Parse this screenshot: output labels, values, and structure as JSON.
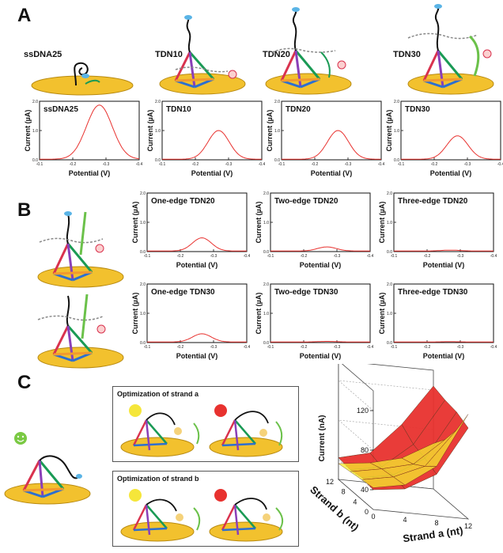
{
  "panels": {
    "a": "A",
    "b": "B",
    "c": "C"
  },
  "a_headers": [
    "ssDNA25",
    "TDN10",
    "TDN20",
    "TDN30"
  ],
  "c_boxes": {
    "a_title": "Optimization of strand a",
    "b_title": "Optimization of strand b"
  },
  "colors": {
    "curve": "#e8322f",
    "gold": "#f2c12e",
    "edge_red": "#d9324e",
    "edge_green": "#1a9a55",
    "edge_blue": "#2d6fd0",
    "surface_red": "#e8322f",
    "surface_yellow": "#f5ee2e",
    "surface_orange": "#f4a52a"
  },
  "icons": [
    "gold-electrode-icon",
    "dna-tetrahedron-icon",
    "methylene-blue-tag-icon",
    "smiley-face-icon"
  ],
  "chart_data": [
    {
      "type": "line",
      "id": "a1",
      "title": "ssDNA25",
      "xlabel": "Potential (V)",
      "ylabel": "Current (µA)",
      "xlim": [
        -0.1,
        -0.4
      ],
      "ylim": [
        0,
        2.0
      ],
      "xticks": [
        "-0.1",
        "-0.2",
        "-0.3",
        "-0.4"
      ],
      "yticks": [
        "0.0",
        "1.0",
        "2.0"
      ],
      "peak": {
        "x": -0.28,
        "y": 1.85,
        "width": 0.055
      }
    },
    {
      "type": "line",
      "id": "a2",
      "title": "TDN10",
      "xlabel": "Potential (V)",
      "ylabel": "Current (µA)",
      "xlim": [
        -0.1,
        -0.4
      ],
      "ylim": [
        0,
        2.0
      ],
      "xticks": [
        "-0.1",
        "-0.2",
        "-0.3",
        "-0.4"
      ],
      "yticks": [
        "0.0",
        "1.0",
        "2.0"
      ],
      "peak": {
        "x": -0.27,
        "y": 0.98,
        "width": 0.045
      }
    },
    {
      "type": "line",
      "id": "a3",
      "title": "TDN20",
      "xlabel": "Potential (V)",
      "ylabel": "Current (µA)",
      "xlim": [
        -0.1,
        -0.4
      ],
      "ylim": [
        0,
        2.0
      ],
      "xticks": [
        "-0.1",
        "-0.2",
        "-0.3",
        "-0.4"
      ],
      "yticks": [
        "0.0",
        "1.0",
        "2.0"
      ],
      "peak": {
        "x": -0.27,
        "y": 0.98,
        "width": 0.045
      }
    },
    {
      "type": "line",
      "id": "a4",
      "title": "TDN30",
      "xlabel": "Potential (V)",
      "ylabel": "Current (µA)",
      "xlim": [
        -0.1,
        -0.4
      ],
      "ylim": [
        0,
        2.0
      ],
      "xticks": [
        "-0.1",
        "-0.2",
        "-0.3",
        "-0.4"
      ],
      "yticks": [
        "0.0",
        "1.0",
        "2.0"
      ],
      "peak": {
        "x": -0.27,
        "y": 0.8,
        "width": 0.045
      }
    },
    {
      "type": "line",
      "id": "b1",
      "title": "One-edge TDN20",
      "xlabel": "Potential (V)",
      "ylabel": "Current (µA)",
      "xlim": [
        -0.1,
        -0.4
      ],
      "ylim": [
        0,
        2.0
      ],
      "xticks": [
        "-0.1",
        "-0.2",
        "-0.3",
        "-0.4"
      ],
      "yticks": [
        "0.0",
        "1.0",
        "2.0"
      ],
      "peak": {
        "x": -0.265,
        "y": 0.45,
        "width": 0.04
      }
    },
    {
      "type": "line",
      "id": "b2",
      "title": "Two-edge TDN20",
      "xlabel": "Potential (V)",
      "ylabel": "Current (µA)",
      "xlim": [
        -0.1,
        -0.4
      ],
      "ylim": [
        0,
        2.0
      ],
      "xticks": [
        "-0.1",
        "-0.2",
        "-0.3",
        "-0.4"
      ],
      "yticks": [
        "0.0",
        "1.0",
        "2.0"
      ],
      "peak": {
        "x": -0.27,
        "y": 0.14,
        "width": 0.04
      }
    },
    {
      "type": "line",
      "id": "b3",
      "title": "Three-edge TDN20",
      "xlabel": "Potential (V)",
      "ylabel": "Current (µA)",
      "xlim": [
        -0.1,
        -0.4
      ],
      "ylim": [
        0,
        2.0
      ],
      "xticks": [
        "-0.1",
        "-0.2",
        "-0.3",
        "-0.4"
      ],
      "yticks": [
        "0.0",
        "1.0",
        "2.0"
      ],
      "peak": {
        "x": -0.27,
        "y": 0.03,
        "width": 0.04
      }
    },
    {
      "type": "line",
      "id": "b4",
      "title": "One-edge TDN30",
      "xlabel": "Potential (V)",
      "ylabel": "Current (µA)",
      "xlim": [
        -0.1,
        -0.4
      ],
      "ylim": [
        0,
        2.0
      ],
      "xticks": [
        "-0.1",
        "-0.2",
        "-0.3",
        "-0.4"
      ],
      "yticks": [
        "0.0",
        "1.0",
        "2.0"
      ],
      "peak": {
        "x": -0.265,
        "y": 0.28,
        "width": 0.04
      }
    },
    {
      "type": "line",
      "id": "b5",
      "title": "Two-edge TDN30",
      "xlabel": "Potential (V)",
      "ylabel": "Current (µA)",
      "xlim": [
        -0.1,
        -0.4
      ],
      "ylim": [
        0,
        2.0
      ],
      "xticks": [
        "-0.1",
        "-0.2",
        "-0.3",
        "-0.4"
      ],
      "yticks": [
        "0.0",
        "1.0",
        "2.0"
      ],
      "peak": {
        "x": -0.27,
        "y": 0.02,
        "width": 0.04
      }
    },
    {
      "type": "line",
      "id": "b6",
      "title": "Three-edge TDN30",
      "xlabel": "Potential (V)",
      "ylabel": "Current (µA)",
      "xlim": [
        -0.1,
        -0.4
      ],
      "ylim": [
        0,
        2.0
      ],
      "xticks": [
        "-0.1",
        "-0.2",
        "-0.3",
        "-0.4"
      ],
      "yticks": [
        "0.0",
        "1.0",
        "2.0"
      ],
      "peak": {
        "x": -0.27,
        "y": 0.01,
        "width": 0.04
      }
    },
    {
      "type": "surface",
      "id": "c3d",
      "xlabel": "Strand a (nt)",
      "ylabel": "Strand b (nt)",
      "zlabel": "Current (nA)",
      "xticks": [
        "0",
        "4",
        "8",
        "12"
      ],
      "yticks": [
        "0",
        "4",
        "8",
        "12"
      ],
      "zticks": [
        "40",
        "80",
        "120"
      ],
      "x": [
        0,
        4,
        8,
        12
      ],
      "y": [
        0,
        4,
        8,
        12
      ],
      "surfaces": [
        {
          "name": "",
          "color": "#e8322f",
          "z": [
            [
              40,
              44,
              62,
              112
            ],
            [
              42,
              48,
              68,
              118
            ],
            [
              40,
              46,
              72,
              120
            ],
            [
              42,
              50,
              82,
              124
            ]
          ]
        },
        {
          "name": "",
          "color": "#f5ee2e",
          "z": [
            [
              42,
              48,
              70,
              126
            ],
            [
              40,
              46,
              60,
              100
            ],
            [
              38,
              44,
              52,
              80
            ],
            [
              36,
              40,
              48,
              66
            ]
          ]
        }
      ]
    }
  ]
}
